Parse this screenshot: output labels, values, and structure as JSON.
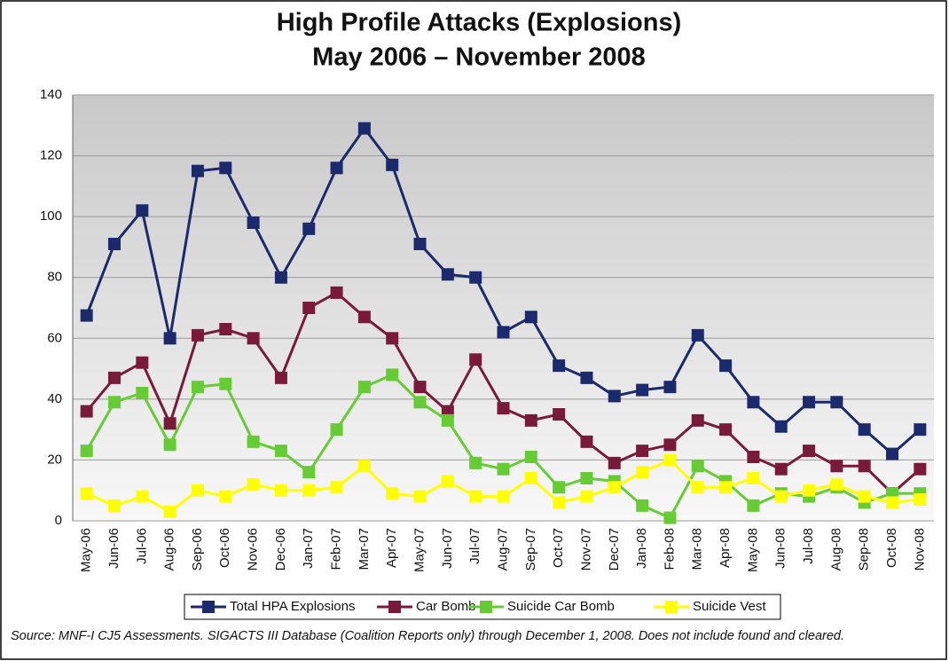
{
  "chart_data": {
    "type": "line",
    "title": "High Profile Attacks (Explosions)",
    "subtitle": "May 2006 – November 2008",
    "categories": [
      "May-06",
      "Jun-06",
      "Jul-06",
      "Aug-06",
      "Sep-06",
      "Oct-06",
      "Nov-06",
      "Dec-06",
      "Jan-07",
      "Feb-07",
      "Mar-07",
      "Apr-07",
      "May-07",
      "Jun-07",
      "Jul-07",
      "Aug-07",
      "Sep-07",
      "Oct-07",
      "Nov-07",
      "Dec-07",
      "Jan-08",
      "Feb-08",
      "Mar-08",
      "Apr-08",
      "May-08",
      "Jun-08",
      "Jul-08",
      "Aug-08",
      "Sep-08",
      "Oct-08",
      "Nov-08"
    ],
    "series": [
      {
        "name": "Total HPA Explosions",
        "color": "#1a2a6c",
        "values": [
          67.5,
          91,
          102,
          60,
          115,
          116,
          98,
          80,
          96,
          116,
          129,
          117,
          91,
          81,
          80,
          62,
          67,
          51,
          47,
          41,
          43,
          44,
          61,
          51,
          39,
          31,
          39,
          39,
          30,
          22,
          30
        ]
      },
      {
        "name": "Car Bomb",
        "color": "#7a1a3a",
        "values": [
          36,
          47,
          52,
          32,
          61,
          63,
          60,
          47,
          70,
          75,
          67,
          60,
          44,
          36,
          53,
          37,
          33,
          35,
          26,
          19,
          23,
          25,
          33,
          30,
          21,
          17,
          23,
          18,
          18,
          9,
          17
        ]
      },
      {
        "name": "Suicide Car Bomb",
        "color": "#66cc33",
        "values": [
          23,
          39,
          42,
          25,
          44,
          45,
          26,
          23,
          16,
          30,
          44,
          48,
          39,
          33,
          19,
          17,
          21,
          11,
          14,
          13,
          5,
          1,
          18,
          13,
          5,
          9,
          8,
          11,
          6,
          9,
          9
        ]
      },
      {
        "name": "Suicide Vest",
        "color": "#ffff00",
        "values": [
          9,
          5,
          8,
          3,
          10,
          8,
          12,
          10,
          10,
          11,
          18,
          9,
          8,
          13,
          8,
          8,
          14,
          6,
          8,
          11,
          16,
          20,
          11,
          11,
          14,
          8,
          10,
          12,
          8,
          6,
          7
        ]
      }
    ],
    "ylim": [
      0,
      140
    ],
    "yticks": [
      0,
      20,
      40,
      60,
      80,
      100,
      120,
      140
    ],
    "grid": true,
    "legend": "bottom",
    "source": "Source:  MNF-I CJ5 Assessments.  SIGACTS III Database (Coalition Reports only)  through December 1, 2008.  Does not include found and cleared."
  }
}
